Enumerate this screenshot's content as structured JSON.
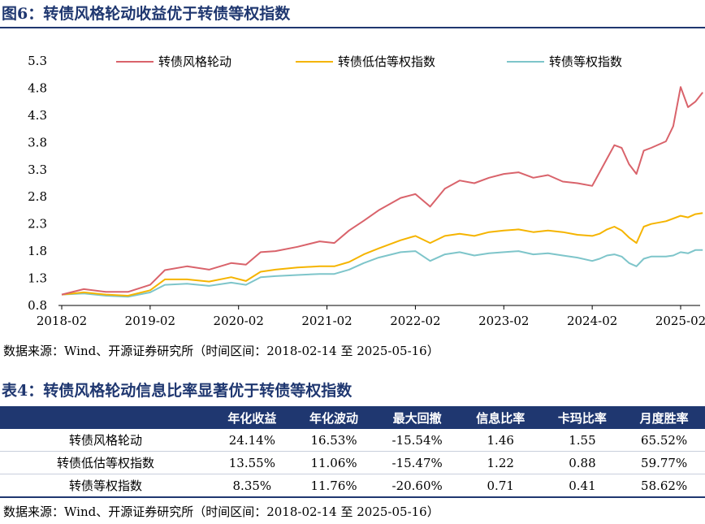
{
  "figure": {
    "heading": "图6：转债风格轮动收益优于转债等权指数",
    "source": "数据来源：Wind、开源证券研究所（时间区间：2018-02-14 至 2025-05-16）"
  },
  "chart_data": {
    "type": "line",
    "title": "",
    "xlabel": "",
    "ylabel": "",
    "ylim": [
      0.8,
      5.3
    ],
    "yticks": [
      "0.8",
      "1.3",
      "1.8",
      "2.3",
      "2.8",
      "3.3",
      "3.8",
      "4.3",
      "4.8",
      "5.3"
    ],
    "xticks": [
      "2018-02",
      "2019-02",
      "2020-02",
      "2021-02",
      "2022-02",
      "2023-02",
      "2024-02",
      "2025-02"
    ],
    "x": [
      "2018-02",
      "2018-05",
      "2018-08",
      "2018-11",
      "2019-02",
      "2019-04",
      "2019-07",
      "2019-10",
      "2020-01",
      "2020-03",
      "2020-05",
      "2020-07",
      "2020-10",
      "2021-01",
      "2021-03",
      "2021-05",
      "2021-07",
      "2021-09",
      "2021-12",
      "2022-02",
      "2022-04",
      "2022-06",
      "2022-08",
      "2022-10",
      "2022-12",
      "2023-02",
      "2023-04",
      "2023-06",
      "2023-08",
      "2023-10",
      "2023-12",
      "2024-02",
      "2024-03",
      "2024-04",
      "2024-05",
      "2024-06",
      "2024-07",
      "2024-08",
      "2024-09",
      "2024-10",
      "2024-12",
      "2025-01",
      "2025-02",
      "2025-03",
      "2025-04",
      "2025-05"
    ],
    "series": [
      {
        "name": "转债风格轮动",
        "color": "#d9636b",
        "values": [
          1.0,
          1.1,
          1.05,
          1.05,
          1.18,
          1.45,
          1.52,
          1.46,
          1.58,
          1.55,
          1.78,
          1.8,
          1.88,
          1.98,
          1.95,
          2.18,
          2.36,
          2.55,
          2.78,
          2.85,
          2.62,
          2.95,
          3.1,
          3.05,
          3.15,
          3.22,
          3.25,
          3.15,
          3.2,
          3.08,
          3.05,
          3.0,
          3.25,
          3.5,
          3.75,
          3.7,
          3.4,
          3.22,
          3.65,
          3.7,
          3.82,
          4.1,
          4.82,
          4.45,
          4.55,
          4.72
        ]
      },
      {
        "name": "转债低估等权指数",
        "color": "#f5b400",
        "values": [
          1.0,
          1.04,
          1.0,
          0.98,
          1.08,
          1.28,
          1.28,
          1.24,
          1.32,
          1.25,
          1.42,
          1.46,
          1.5,
          1.52,
          1.52,
          1.6,
          1.74,
          1.85,
          2.0,
          2.08,
          1.95,
          2.08,
          2.12,
          2.08,
          2.15,
          2.18,
          2.2,
          2.15,
          2.18,
          2.15,
          2.1,
          2.08,
          2.12,
          2.2,
          2.25,
          2.18,
          2.05,
          1.95,
          2.25,
          2.3,
          2.35,
          2.4,
          2.45,
          2.42,
          2.48,
          2.5
        ]
      },
      {
        "name": "转债等权指数",
        "color": "#7ec5ca",
        "values": [
          1.0,
          1.02,
          0.98,
          0.96,
          1.04,
          1.18,
          1.2,
          1.16,
          1.22,
          1.18,
          1.32,
          1.34,
          1.36,
          1.38,
          1.38,
          1.46,
          1.58,
          1.68,
          1.78,
          1.8,
          1.62,
          1.74,
          1.78,
          1.72,
          1.76,
          1.78,
          1.8,
          1.74,
          1.76,
          1.72,
          1.68,
          1.62,
          1.66,
          1.72,
          1.74,
          1.7,
          1.58,
          1.52,
          1.66,
          1.7,
          1.7,
          1.72,
          1.78,
          1.76,
          1.82,
          1.82
        ]
      }
    ],
    "legend": "top"
  },
  "table": {
    "heading": "表4：转债风格轮动信息比率显著优于转债等权指数",
    "columns": [
      "",
      "年化收益",
      "年化波动",
      "最大回撤",
      "信息比率",
      "卡玛比率",
      "月度胜率"
    ],
    "rows": [
      [
        "转债风格轮动",
        "24.14%",
        "16.53%",
        "-15.54%",
        "1.46",
        "1.55",
        "65.52%"
      ],
      [
        "转债低估等权指数",
        "13.55%",
        "11.06%",
        "-15.47%",
        "1.22",
        "0.88",
        "59.77%"
      ],
      [
        "转债等权指数",
        "8.35%",
        "11.76%",
        "-20.60%",
        "0.71",
        "0.41",
        "58.62%"
      ]
    ],
    "source": "数据来源：Wind、开源证券研究所（时间区间：2018-02-14 至 2025-05-16）"
  }
}
